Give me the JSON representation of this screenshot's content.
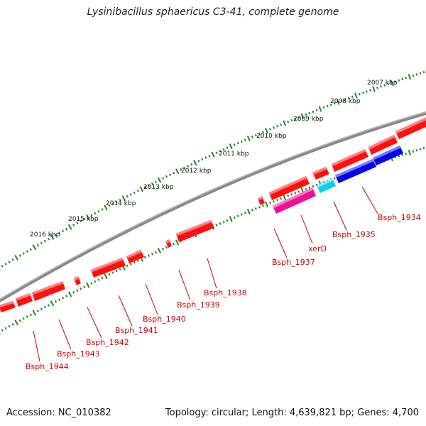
{
  "title": "Lysinibacillus sphaericus C3-41, complete genome",
  "footer": {
    "accession": "Accession: NC_010382",
    "summary": "Topology: circular; Length: 4,639,821 bp; Genes: 4,700"
  },
  "colors": {
    "forward_gene": "#ff0000",
    "reverse_gene": "#0000ee",
    "xerD": "#ee1199",
    "bsph1935": "#11ccee",
    "backbone": "#777777",
    "ticks": "#228822",
    "label": "#cc0000"
  },
  "kbp_labels": [
    "2016 kbp",
    "2015 kbp",
    "2014 kbp",
    "2013 kbp",
    "2012 kbp",
    "2011 kbp",
    "2010 kbp",
    "2009 kbp",
    "2008 kbp",
    "2007 kbp"
  ],
  "gene_labels": [
    "Bsph_1934",
    "Bsph_1935",
    "xerD",
    "Bsph_1937",
    "Bsph_1938",
    "Bsph_1939",
    "Bsph_1940",
    "Bsph_1941",
    "Bsph_1942",
    "Bsph_1943",
    "Bsph_1944"
  ]
}
